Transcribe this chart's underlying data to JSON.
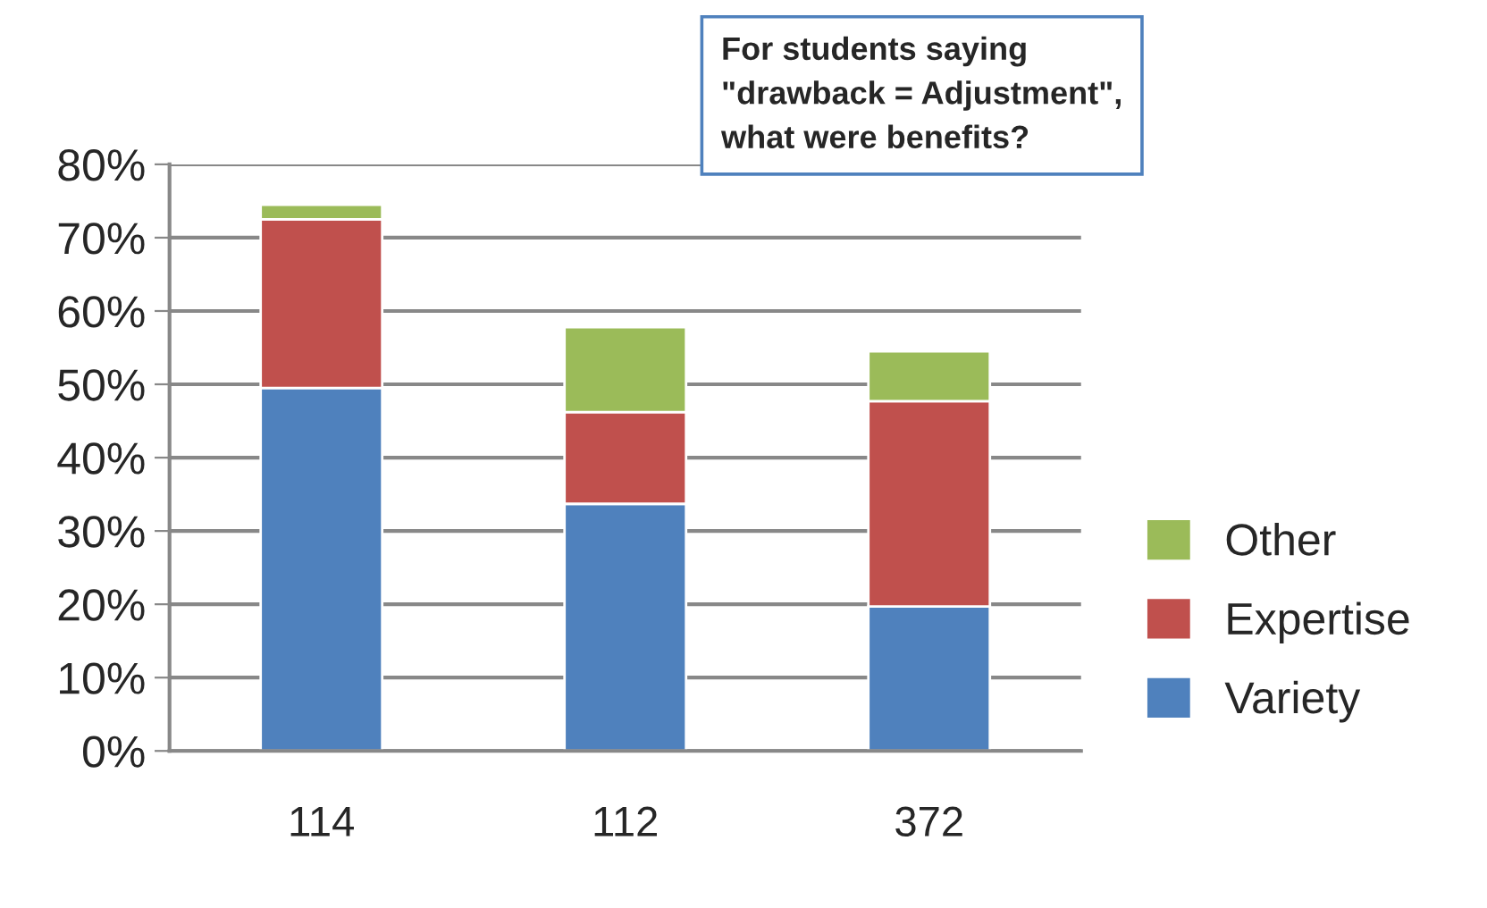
{
  "chart_data": {
    "type": "bar",
    "stacked": true,
    "categories": [
      "114",
      "112",
      "372"
    ],
    "series": [
      {
        "name": "Variety",
        "color": "#4f81bd",
        "values": [
          49.5,
          33.7,
          19.7
        ]
      },
      {
        "name": "Expertise",
        "color": "#c0504d",
        "values": [
          23,
          12.5,
          28
        ]
      },
      {
        "name": "Other",
        "color": "#9bbb59",
        "values": [
          2,
          11.6,
          6.8
        ]
      }
    ],
    "ylim": [
      0,
      80
    ],
    "yticks": [
      {
        "value": 0,
        "label": "0%"
      },
      {
        "value": 10,
        "label": "10%"
      },
      {
        "value": 20,
        "label": "20%"
      },
      {
        "value": 30,
        "label": "30%"
      },
      {
        "value": 40,
        "label": "40%"
      },
      {
        "value": 50,
        "label": "50%"
      },
      {
        "value": 60,
        "label": "60%"
      },
      {
        "value": 70,
        "label": "70%"
      },
      {
        "value": 80,
        "label": "80%"
      }
    ],
    "grid": "y",
    "legend": "right",
    "annotations": [
      "For students saying\n\"drawback = Adjustment\",\nwhat were benefits?"
    ]
  }
}
